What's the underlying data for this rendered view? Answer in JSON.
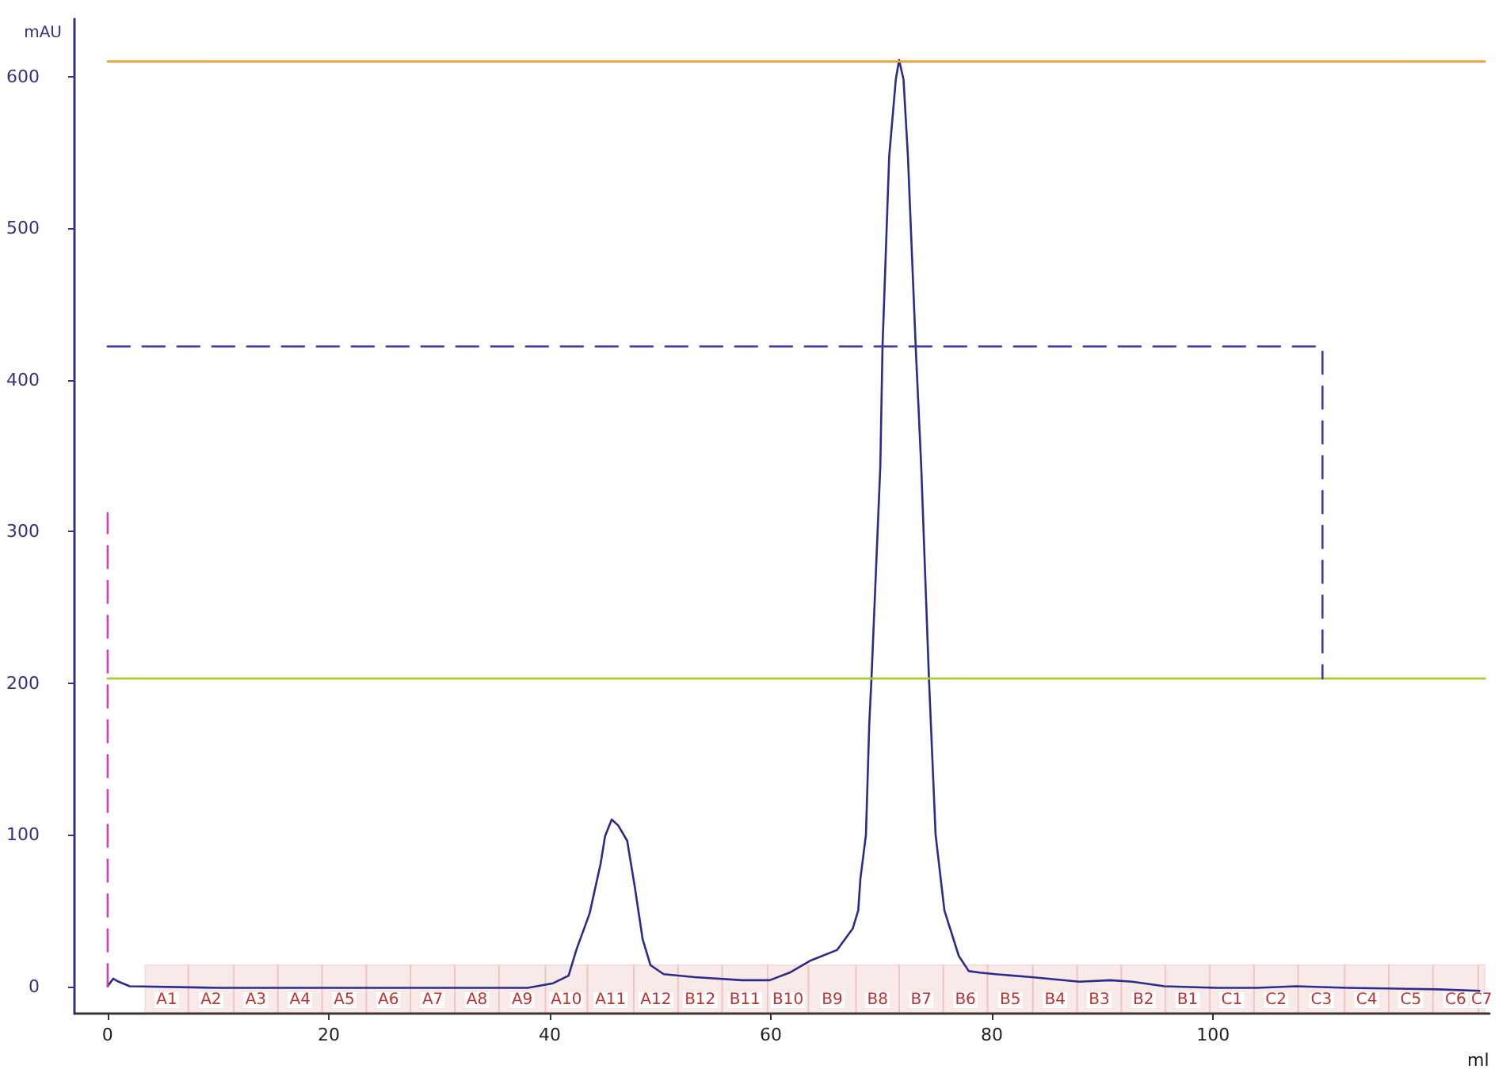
{
  "chart_data": {
    "type": "line",
    "xlabel": "ml",
    "ylabel": "mAU",
    "xlim": [
      -3,
      125
    ],
    "xticks": [
      0,
      20,
      40,
      60,
      80,
      100
    ],
    "ylim": [
      -18,
      638
    ],
    "yticks": [
      0,
      100,
      200,
      300,
      400,
      500,
      600
    ],
    "grid": false,
    "marker": "none",
    "series": [
      {
        "color": "#2b2b8c",
        "line_style": "solid",
        "x": [
          0,
          0.5,
          1,
          2,
          10,
          20,
          30,
          38,
          40.3,
          41.7,
          42.4,
          43.6,
          44.6,
          45,
          45.6,
          46.2,
          47,
          47.7,
          48.4,
          49.1,
          50.3,
          53.1,
          57.4,
          59.9,
          61.7,
          63.6,
          66,
          67.4,
          67.9,
          68.1,
          68.6,
          68.9,
          69.1,
          69.9,
          70.1,
          70.7,
          71.3,
          71.6,
          72.0,
          72.4,
          73.1,
          73.6,
          74.3,
          74.9,
          75.7,
          77.0,
          77.9,
          78.9,
          80.3,
          83.6,
          87.9,
          90.7,
          92.7,
          95.6,
          100.3,
          104,
          107.5,
          112.1,
          120.3,
          124.1
        ],
        "values": [
          0,
          5,
          3,
          0,
          -1,
          -1,
          -1,
          -1,
          2,
          7,
          24,
          48,
          81,
          99,
          110,
          106,
          96,
          65,
          31,
          14,
          8,
          6,
          4,
          4,
          9,
          17,
          24,
          38,
          50,
          71,
          100,
          173,
          203,
          343,
          422,
          547,
          598,
          611,
          598,
          547,
          422,
          343,
          203,
          100,
          50,
          20,
          10,
          9,
          8,
          6,
          3,
          4,
          3,
          0,
          -1,
          -1,
          0,
          -1,
          -2,
          -3
        ]
      },
      {
        "color": "#f0a030",
        "line_style": "solid",
        "x": [
          0,
          124.6
        ],
        "values": [
          610,
          610
        ]
      },
      {
        "color": "#a8c838",
        "line_style": "solid",
        "x": [
          0,
          124.6
        ],
        "values": [
          203,
          203
        ]
      },
      {
        "color": "#3c3ca8",
        "line_style": "dashed",
        "x": [
          0,
          109.9,
          109.9
        ],
        "values": [
          422,
          422,
          203
        ]
      },
      {
        "color": "#d040c0",
        "line_style": "dashed",
        "x": [
          0,
          0
        ],
        "values": [
          0,
          312
        ]
      }
    ],
    "bands": [
      {
        "axis": "x",
        "from": 3.4,
        "to": 7.3,
        "label": "A1",
        "color": "#c03030"
      },
      {
        "axis": "x",
        "from": 7.3,
        "to": 11.4,
        "label": "A2",
        "color": "#c03030"
      },
      {
        "axis": "x",
        "from": 11.4,
        "to": 15.4,
        "label": "A3",
        "color": "#c03030"
      },
      {
        "axis": "x",
        "from": 15.4,
        "to": 19.4,
        "label": "A4",
        "color": "#c03030"
      },
      {
        "axis": "x",
        "from": 19.4,
        "to": 23.4,
        "label": "A5",
        "color": "#c03030"
      },
      {
        "axis": "x",
        "from": 23.4,
        "to": 27.4,
        "label": "A6",
        "color": "#c03030"
      },
      {
        "axis": "x",
        "from": 27.4,
        "to": 31.4,
        "label": "A7",
        "color": "#c03030"
      },
      {
        "axis": "x",
        "from": 31.4,
        "to": 35.4,
        "label": "A8",
        "color": "#c03030"
      },
      {
        "axis": "x",
        "from": 35.4,
        "to": 39.6,
        "label": "A9",
        "color": "#c03030"
      },
      {
        "axis": "x",
        "from": 39.6,
        "to": 43.4,
        "label": "A10",
        "color": "#c03030"
      },
      {
        "axis": "x",
        "from": 43.4,
        "to": 47.6,
        "label": "A11",
        "color": "#c03030"
      },
      {
        "axis": "x",
        "from": 47.6,
        "to": 51.6,
        "label": "A12",
        "color": "#c03030"
      },
      {
        "axis": "x",
        "from": 51.6,
        "to": 55.6,
        "label": "B12",
        "color": "#c03030"
      },
      {
        "axis": "x",
        "from": 55.6,
        "to": 59.7,
        "label": "B11",
        "color": "#c03030"
      },
      {
        "axis": "x",
        "from": 59.7,
        "to": 63.4,
        "label": "B10",
        "color": "#c03030"
      },
      {
        "axis": "x",
        "from": 63.4,
        "to": 67.7,
        "label": "B9",
        "color": "#c03030"
      },
      {
        "axis": "x",
        "from": 67.7,
        "to": 71.6,
        "label": "B8",
        "color": "#c03030"
      },
      {
        "axis": "x",
        "from": 71.6,
        "to": 75.6,
        "label": "B7",
        "color": "#c03030"
      },
      {
        "axis": "x",
        "from": 75.6,
        "to": 79.6,
        "label": "B6",
        "color": "#c03030"
      },
      {
        "axis": "x",
        "from": 79.6,
        "to": 83.7,
        "label": "B5",
        "color": "#c03030"
      },
      {
        "axis": "x",
        "from": 83.7,
        "to": 87.7,
        "label": "B4",
        "color": "#c03030"
      },
      {
        "axis": "x",
        "from": 87.7,
        "to": 91.7,
        "label": "B3",
        "color": "#c03030"
      },
      {
        "axis": "x",
        "from": 91.7,
        "to": 95.7,
        "label": "B2",
        "color": "#c03030"
      },
      {
        "axis": "x",
        "from": 95.7,
        "to": 99.7,
        "label": "B1",
        "color": "#c03030"
      },
      {
        "axis": "x",
        "from": 99.7,
        "to": 103.7,
        "label": "C1",
        "color": "#c03030"
      },
      {
        "axis": "x",
        "from": 103.7,
        "to": 107.7,
        "label": "C2",
        "color": "#c03030"
      },
      {
        "axis": "x",
        "from": 107.7,
        "to": 111.9,
        "label": "C3",
        "color": "#c03030"
      },
      {
        "axis": "x",
        "from": 111.9,
        "to": 115.9,
        "label": "C4",
        "color": "#c03030"
      },
      {
        "axis": "x",
        "from": 115.9,
        "to": 119.9,
        "label": "C5",
        "color": "#c03030"
      },
      {
        "axis": "x",
        "from": 119.9,
        "to": 124.0,
        "label": "C6",
        "color": "#c03030"
      },
      {
        "axis": "x",
        "from": 124.0,
        "to": 124.6,
        "label": "C7",
        "color": "#c03030"
      }
    ]
  }
}
